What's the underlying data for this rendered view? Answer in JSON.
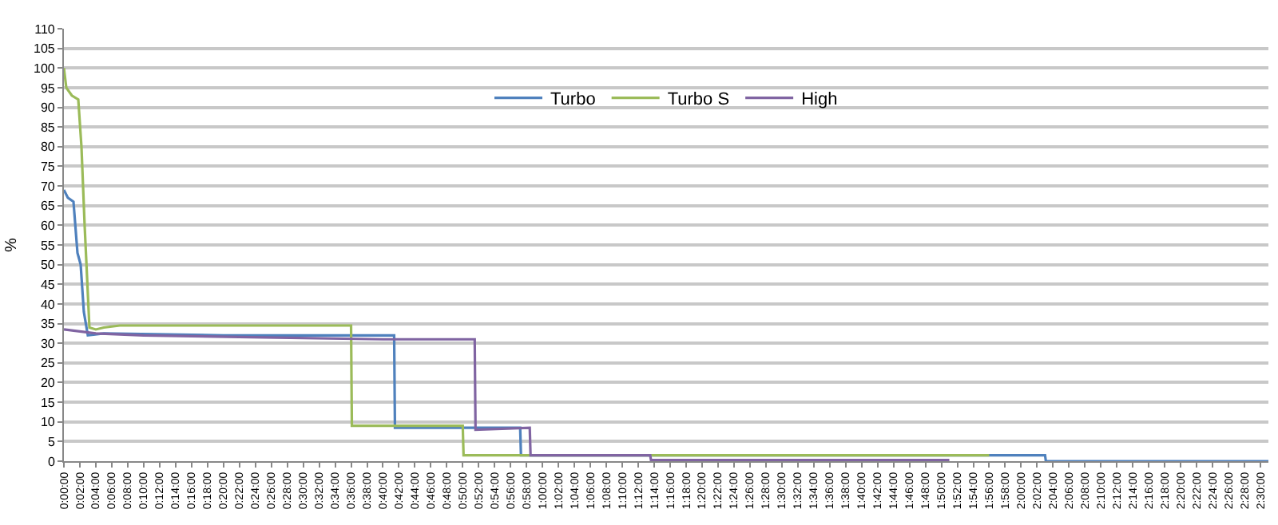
{
  "chart_data": {
    "type": "line",
    "ylabel": "%",
    "legend": "top",
    "grid": "y",
    "marker": "none",
    "line_style": "solid",
    "xlim": [
      0,
      151
    ],
    "ylim": [
      0,
      110
    ],
    "yticks": [
      0,
      5,
      10,
      15,
      20,
      25,
      30,
      35,
      40,
      45,
      50,
      55,
      60,
      65,
      70,
      75,
      80,
      85,
      90,
      95,
      100,
      105,
      110
    ],
    "xticks": [
      {
        "value": 0,
        "label": "0:00:00"
      },
      {
        "value": 2,
        "label": "0:02:00"
      },
      {
        "value": 4,
        "label": "0:04:00"
      },
      {
        "value": 6,
        "label": "0:06:00"
      },
      {
        "value": 8,
        "label": "0:08:00"
      },
      {
        "value": 10,
        "label": "0:10:00"
      },
      {
        "value": 12,
        "label": "0:12:00"
      },
      {
        "value": 14,
        "label": "0:14:00"
      },
      {
        "value": 16,
        "label": "0:16:00"
      },
      {
        "value": 18,
        "label": "0:18:00"
      },
      {
        "value": 20,
        "label": "0:20:00"
      },
      {
        "value": 22,
        "label": "0:22:00"
      },
      {
        "value": 24,
        "label": "0:24:00"
      },
      {
        "value": 26,
        "label": "0:26:00"
      },
      {
        "value": 28,
        "label": "0:28:00"
      },
      {
        "value": 30,
        "label": "0:30:00"
      },
      {
        "value": 32,
        "label": "0:32:00"
      },
      {
        "value": 34,
        "label": "0:34:00"
      },
      {
        "value": 36,
        "label": "0:36:00"
      },
      {
        "value": 38,
        "label": "0:38:00"
      },
      {
        "value": 40,
        "label": "0:40:00"
      },
      {
        "value": 42,
        "label": "0:42:00"
      },
      {
        "value": 44,
        "label": "0:44:00"
      },
      {
        "value": 46,
        "label": "0:46:00"
      },
      {
        "value": 48,
        "label": "0:48:00"
      },
      {
        "value": 50,
        "label": "0:50:00"
      },
      {
        "value": 52,
        "label": "0:52:00"
      },
      {
        "value": 54,
        "label": "0:54:00"
      },
      {
        "value": 56,
        "label": "0:56:00"
      },
      {
        "value": 58,
        "label": "0:58:00"
      },
      {
        "value": 60,
        "label": "1:00:00"
      },
      {
        "value": 62,
        "label": "1:02:00"
      },
      {
        "value": 64,
        "label": "1:04:00"
      },
      {
        "value": 66,
        "label": "1:06:00"
      },
      {
        "value": 68,
        "label": "1:08:00"
      },
      {
        "value": 70,
        "label": "1:10:00"
      },
      {
        "value": 72,
        "label": "1:12:00"
      },
      {
        "value": 74,
        "label": "1:14:00"
      },
      {
        "value": 76,
        "label": "1:16:00"
      },
      {
        "value": 78,
        "label": "1:18:00"
      },
      {
        "value": 80,
        "label": "1:20:00"
      },
      {
        "value": 82,
        "label": "1:22:00"
      },
      {
        "value": 84,
        "label": "1:24:00"
      },
      {
        "value": 86,
        "label": "1:26:00"
      },
      {
        "value": 88,
        "label": "1:28:00"
      },
      {
        "value": 90,
        "label": "1:30:00"
      },
      {
        "value": 92,
        "label": "1:32:00"
      },
      {
        "value": 94,
        "label": "1:34:00"
      },
      {
        "value": 96,
        "label": "1:36:00"
      },
      {
        "value": 98,
        "label": "1:38:00"
      },
      {
        "value": 100,
        "label": "1:40:00"
      },
      {
        "value": 102,
        "label": "1:42:00"
      },
      {
        "value": 104,
        "label": "1:44:00"
      },
      {
        "value": 106,
        "label": "1:46:00"
      },
      {
        "value": 108,
        "label": "1:48:00"
      },
      {
        "value": 110,
        "label": "1:50:00"
      },
      {
        "value": 112,
        "label": "1:52:00"
      },
      {
        "value": 114,
        "label": "1:54:00"
      },
      {
        "value": 116,
        "label": "1:56:00"
      },
      {
        "value": 118,
        "label": "1:58:00"
      },
      {
        "value": 120,
        "label": "2:00:00"
      },
      {
        "value": 122,
        "label": "2:02:00"
      },
      {
        "value": 124,
        "label": "2:04:00"
      },
      {
        "value": 126,
        "label": "2:06:00"
      },
      {
        "value": 128,
        "label": "2:08:00"
      },
      {
        "value": 130,
        "label": "2:10:00"
      },
      {
        "value": 132,
        "label": "2:12:00"
      },
      {
        "value": 134,
        "label": "2:14:00"
      },
      {
        "value": 136,
        "label": "2:16:00"
      },
      {
        "value": 138,
        "label": "2:18:00"
      },
      {
        "value": 140,
        "label": "2:20:00"
      },
      {
        "value": 142,
        "label": "2:22:00"
      },
      {
        "value": 144,
        "label": "2:24:00"
      },
      {
        "value": 146,
        "label": "2:26:00"
      },
      {
        "value": 148,
        "label": "2:28:00"
      },
      {
        "value": 150,
        "label": "2:30:00"
      }
    ],
    "series": [
      {
        "name": "Turbo",
        "color": "#4f81bd",
        "x": [
          0,
          0.5,
          1.2,
          1.7,
          2.1,
          2.5,
          3.0,
          5,
          20,
          41.4,
          41.5,
          57.2,
          57.3,
          123,
          123.1,
          151
        ],
        "values": [
          69,
          67,
          66,
          53,
          50,
          38,
          32,
          32.5,
          32,
          32,
          8.5,
          8.5,
          1.5,
          1.5,
          0,
          0
        ]
      },
      {
        "name": "Turbo S",
        "color": "#9bbb59",
        "x": [
          0,
          0.3,
          1,
          1.8,
          2.2,
          2.6,
          3.2,
          4,
          5,
          7,
          36,
          36.1,
          50,
          50.1,
          116
        ],
        "values": [
          100,
          95,
          93,
          92,
          80,
          60,
          34,
          33.5,
          34,
          34.5,
          34.5,
          9,
          9,
          1.5,
          1.5
        ]
      },
      {
        "name": "High",
        "color": "#8064a2",
        "x": [
          0,
          4,
          10,
          25,
          40,
          51.5,
          51.6,
          58.4,
          58.5,
          73.5,
          73.6,
          111
        ],
        "values": [
          33.5,
          32.5,
          32,
          31.5,
          31,
          31,
          8,
          8.5,
          1.5,
          1.5,
          0.3,
          0.3
        ]
      }
    ]
  }
}
